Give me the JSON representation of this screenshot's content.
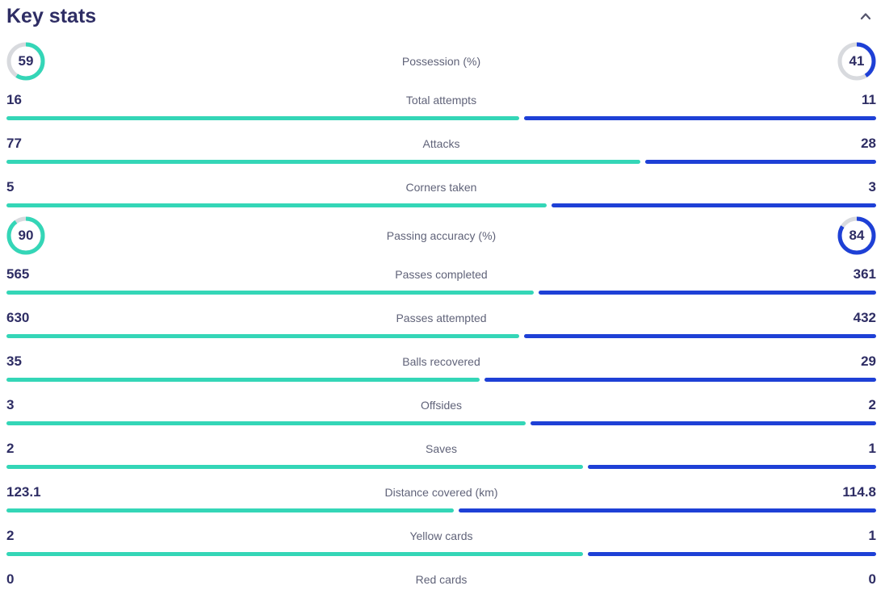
{
  "panel": {
    "title": "Key stats",
    "collapse_icon": "chevron-up-icon"
  },
  "colors": {
    "home": "#34d6b7",
    "away": "#1e40d6",
    "donut_track": "#d8dade",
    "value_text": "#2e2d64",
    "label_text": "#606379",
    "chevron": "#54546c"
  },
  "stats": [
    {
      "label": "Possession (%)",
      "home": 59,
      "away": 41,
      "display": "circle"
    },
    {
      "label": "Total attempts",
      "home": 16,
      "away": 11,
      "display": "bar"
    },
    {
      "label": "Attacks",
      "home": 77,
      "away": 28,
      "display": "bar"
    },
    {
      "label": "Corners taken",
      "home": 5,
      "away": 3,
      "display": "bar"
    },
    {
      "label": "Passing accuracy (%)",
      "home": 90,
      "away": 84,
      "display": "circle"
    },
    {
      "label": "Passes completed",
      "home": 565,
      "away": 361,
      "display": "bar"
    },
    {
      "label": "Passes attempted",
      "home": 630,
      "away": 432,
      "display": "bar"
    },
    {
      "label": "Balls recovered",
      "home": 35,
      "away": 29,
      "display": "bar"
    },
    {
      "label": "Offsides",
      "home": 3,
      "away": 2,
      "display": "bar"
    },
    {
      "label": "Saves",
      "home": 2,
      "away": 1,
      "display": "bar"
    },
    {
      "label": "Distance covered (km)",
      "home": "123.1",
      "away": "114.8",
      "display": "bar"
    },
    {
      "label": "Yellow cards",
      "home": 2,
      "away": 1,
      "display": "bar"
    },
    {
      "label": "Red cards",
      "home": 0,
      "away": 0,
      "display": "bar"
    }
  ]
}
